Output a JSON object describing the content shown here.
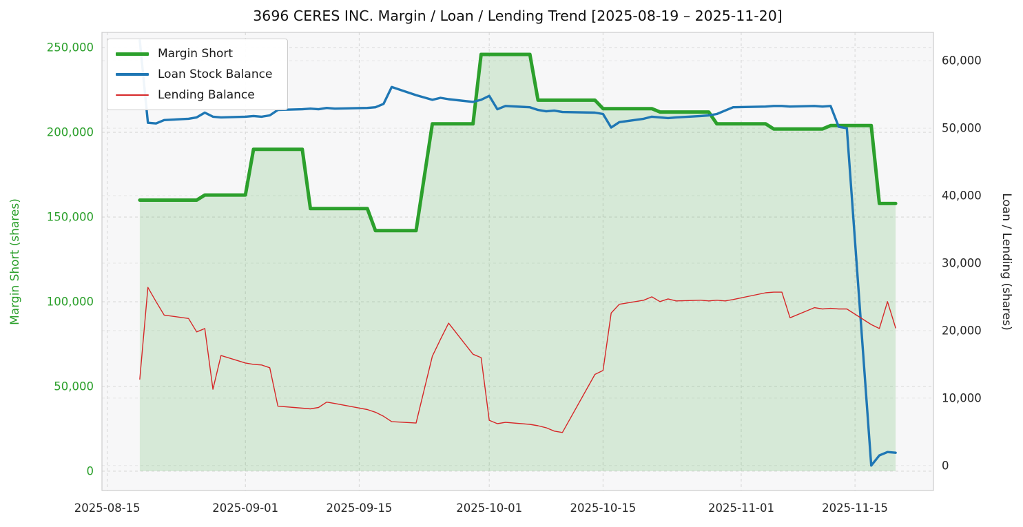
{
  "chart_data": {
    "type": "line",
    "title": "3696 CERES INC. Margin / Loan / Lending Trend [2025-08-19 – 2025-11-20]",
    "ylabel_left": "Margin Short (shares)",
    "ylabel_right": "Loan / Lending (shares)",
    "grid": true,
    "legend_position": "upper-left",
    "x_start": "2025-08-19",
    "x_domain_days": [
      -4.65,
      97.65
    ],
    "ylim_left": [
      -11400,
      259000
    ],
    "ylim_right": [
      -3700,
      64200
    ],
    "x_tick_labels": [
      "2025-08-15",
      "2025-09-01",
      "2025-09-15",
      "2025-10-01",
      "2025-10-15",
      "2025-11-01",
      "2025-11-15"
    ],
    "y_left_ticks": [
      {
        "v": 0,
        "label": "0"
      },
      {
        "v": 50000,
        "label": "50,000"
      },
      {
        "v": 100000,
        "label": "100,000"
      },
      {
        "v": 150000,
        "label": "150,000"
      },
      {
        "v": 200000,
        "label": "200,000"
      },
      {
        "v": 250000,
        "label": "250,000"
      }
    ],
    "y_right_ticks": [
      {
        "v": 0,
        "label": "0"
      },
      {
        "v": 10000,
        "label": "10,000"
      },
      {
        "v": 20000,
        "label": "20,000"
      },
      {
        "v": 30000,
        "label": "30,000"
      },
      {
        "v": 40000,
        "label": "40,000"
      },
      {
        "v": 50000,
        "label": "50,000"
      },
      {
        "v": 60000,
        "label": "60,000"
      }
    ],
    "colors": {
      "margin": "#2ca02c",
      "loan": "#1f77b4",
      "lending": "#d62728",
      "fill": "rgba(44,160,44,0.16)",
      "plot_bg": "#f7f7f8",
      "grid": "#d8d8d8",
      "grid_secondary": "#e5e5e5",
      "frame": "#cccccc",
      "tick": "#262626"
    },
    "x": [
      "2025-08-19",
      "2025-08-20",
      "2025-08-21",
      "2025-08-22",
      "2025-08-25",
      "2025-08-26",
      "2025-08-27",
      "2025-08-28",
      "2025-08-29",
      "2025-09-01",
      "2025-09-02",
      "2025-09-03",
      "2025-09-04",
      "2025-09-05",
      "2025-09-08",
      "2025-09-09",
      "2025-09-10",
      "2025-09-11",
      "2025-09-12",
      "2025-09-16",
      "2025-09-17",
      "2025-09-18",
      "2025-09-19",
      "2025-09-22",
      "2025-09-24",
      "2025-09-25",
      "2025-09-26",
      "2025-09-29",
      "2025-09-30",
      "2025-10-01",
      "2025-10-02",
      "2025-10-03",
      "2025-10-06",
      "2025-10-07",
      "2025-10-08",
      "2025-10-09",
      "2025-10-10",
      "2025-10-14",
      "2025-10-15",
      "2025-10-16",
      "2025-10-17",
      "2025-10-20",
      "2025-10-21",
      "2025-10-22",
      "2025-10-23",
      "2025-10-24",
      "2025-10-27",
      "2025-10-28",
      "2025-10-29",
      "2025-10-30",
      "2025-10-31",
      "2025-11-04",
      "2025-11-05",
      "2025-11-06",
      "2025-11-07",
      "2025-11-10",
      "2025-11-11",
      "2025-11-12",
      "2025-11-13",
      "2025-11-14",
      "2025-11-17",
      "2025-11-18",
      "2025-11-19",
      "2025-11-20"
    ],
    "series": [
      {
        "id": "margin-short",
        "name": "Margin Short",
        "axis": "left",
        "color": "#2ca02c",
        "line_width": 5,
        "fill": true,
        "values": [
          160000,
          160000,
          160000,
          160000,
          160000,
          160000,
          163000,
          163000,
          163000,
          163000,
          190000,
          190000,
          190000,
          190000,
          190000,
          155000,
          155000,
          155000,
          155000,
          155000,
          142000,
          142000,
          142000,
          142000,
          205000,
          205000,
          205000,
          205000,
          246000,
          246000,
          246000,
          246000,
          246000,
          219000,
          219000,
          219000,
          219000,
          219000,
          214000,
          214000,
          214000,
          214000,
          214000,
          212000,
          212000,
          212000,
          212000,
          212000,
          205000,
          205000,
          205000,
          205000,
          202000,
          202000,
          202000,
          202000,
          202000,
          204000,
          204000,
          204000,
          204000,
          158000,
          158000,
          158000
        ]
      },
      {
        "id": "loan-stock-balance",
        "name": "Loan Stock Balance",
        "axis": "right",
        "color": "#1f77b4",
        "line_width": 3.4,
        "fill": false,
        "values": [
          63000,
          50800,
          50700,
          51200,
          51400,
          51600,
          52300,
          51700,
          51600,
          51700,
          51800,
          51700,
          51900,
          52700,
          52800,
          52900,
          52800,
          53000,
          52900,
          53000,
          53100,
          53600,
          56100,
          54900,
          54200,
          54500,
          54300,
          53900,
          54200,
          54800,
          52800,
          53300,
          53100,
          52700,
          52500,
          52600,
          52400,
          52300,
          52100,
          50100,
          50900,
          51400,
          51700,
          51600,
          51500,
          51600,
          51800,
          51900,
          52100,
          52600,
          53100,
          53200,
          53300,
          53300,
          53200,
          53300,
          53200,
          53300,
          50200,
          50000,
          0,
          1500,
          2000,
          1900
        ]
      },
      {
        "id": "lending-balance",
        "name": "Lending Balance",
        "axis": "right",
        "color": "#d62728",
        "line_width": 1.4,
        "fill": false,
        "values": [
          12800,
          26400,
          24300,
          22300,
          21800,
          19800,
          20300,
          11300,
          16300,
          15200,
          15000,
          14900,
          14500,
          8800,
          8500,
          8400,
          8600,
          9400,
          9200,
          8300,
          7900,
          7300,
          6500,
          6300,
          16200,
          18700,
          21100,
          16500,
          16000,
          6700,
          6200,
          6400,
          6100,
          5900,
          5600,
          5100,
          4900,
          13500,
          14100,
          22600,
          23900,
          24500,
          25000,
          24300,
          24700,
          24400,
          24500,
          24400,
          24500,
          24400,
          24600,
          25600,
          25700,
          25700,
          21900,
          23400,
          23200,
          23300,
          23200,
          23200,
          20900,
          20300,
          24300,
          20400
        ]
      }
    ]
  }
}
